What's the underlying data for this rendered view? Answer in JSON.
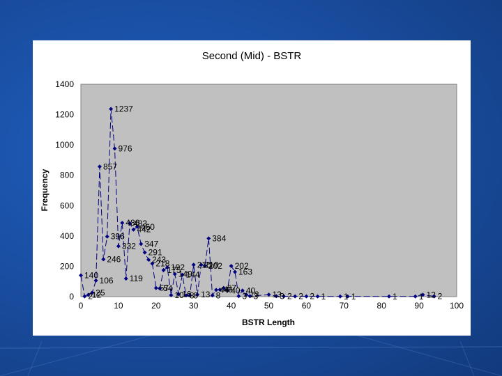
{
  "chart_data": {
    "type": "line",
    "title": "Second (Mid) - BSTR",
    "xlabel": "BSTR Length",
    "ylabel": "Frequency",
    "xlim": [
      0,
      100
    ],
    "ylim": [
      0,
      1400
    ],
    "x_ticks": [
      0,
      10,
      20,
      30,
      40,
      50,
      60,
      70,
      80,
      90,
      100
    ],
    "y_ticks": [
      0,
      200,
      400,
      600,
      800,
      1000,
      1200,
      1400
    ],
    "grid": false,
    "legend": "none",
    "plot_background": "#c0c0c0",
    "series_color": "#000080",
    "line_style": "dashed",
    "series": [
      {
        "x": [
          0,
          1,
          2,
          3,
          4,
          5,
          6,
          7,
          8,
          9,
          10,
          11,
          12,
          13,
          14,
          15,
          16,
          17,
          18,
          19,
          20,
          21,
          22,
          23,
          24,
          25,
          26,
          27,
          28,
          29,
          30,
          31,
          32,
          33,
          34,
          35,
          36,
          37,
          38,
          39,
          40,
          41,
          42,
          43,
          44,
          45,
          50,
          52,
          54,
          57,
          60,
          63,
          69,
          71,
          82,
          89,
          91,
          94
        ],
        "values": [
          140,
          2,
          12,
          25,
          106,
          857,
          246,
          396,
          1237,
          976,
          332,
          486,
          119,
          483,
          442,
          460,
          347,
          291,
          243,
          218,
          57,
          54,
          175,
          192,
          10,
          149,
          16,
          144,
          8,
          8,
          210,
          13,
          210,
          202,
          384,
          8,
          44,
          46,
          57,
          40,
          202,
          163,
          3,
          40,
          13,
          3,
          13,
          3,
          2,
          2,
          2,
          1,
          1,
          1,
          1,
          1,
          12,
          2
        ],
        "labels": [
          "140",
          "2",
          "12",
          "25",
          "106",
          "857",
          "246",
          "396",
          "1237",
          "976",
          "332",
          "486",
          "119",
          "483",
          "442",
          "460",
          "347",
          "291",
          "243",
          "218",
          "57",
          "54",
          "175",
          "192",
          "10",
          "149",
          "16",
          "144",
          "8",
          "8",
          "210",
          "13",
          "210",
          "202",
          "384",
          "8",
          "44",
          "46",
          "57",
          "40",
          "202",
          "163",
          "3",
          "40",
          "13",
          "3",
          "13",
          "3",
          "2",
          "2",
          "2",
          "1",
          "1",
          "1",
          "1",
          "1",
          "12",
          "2"
        ]
      }
    ]
  }
}
